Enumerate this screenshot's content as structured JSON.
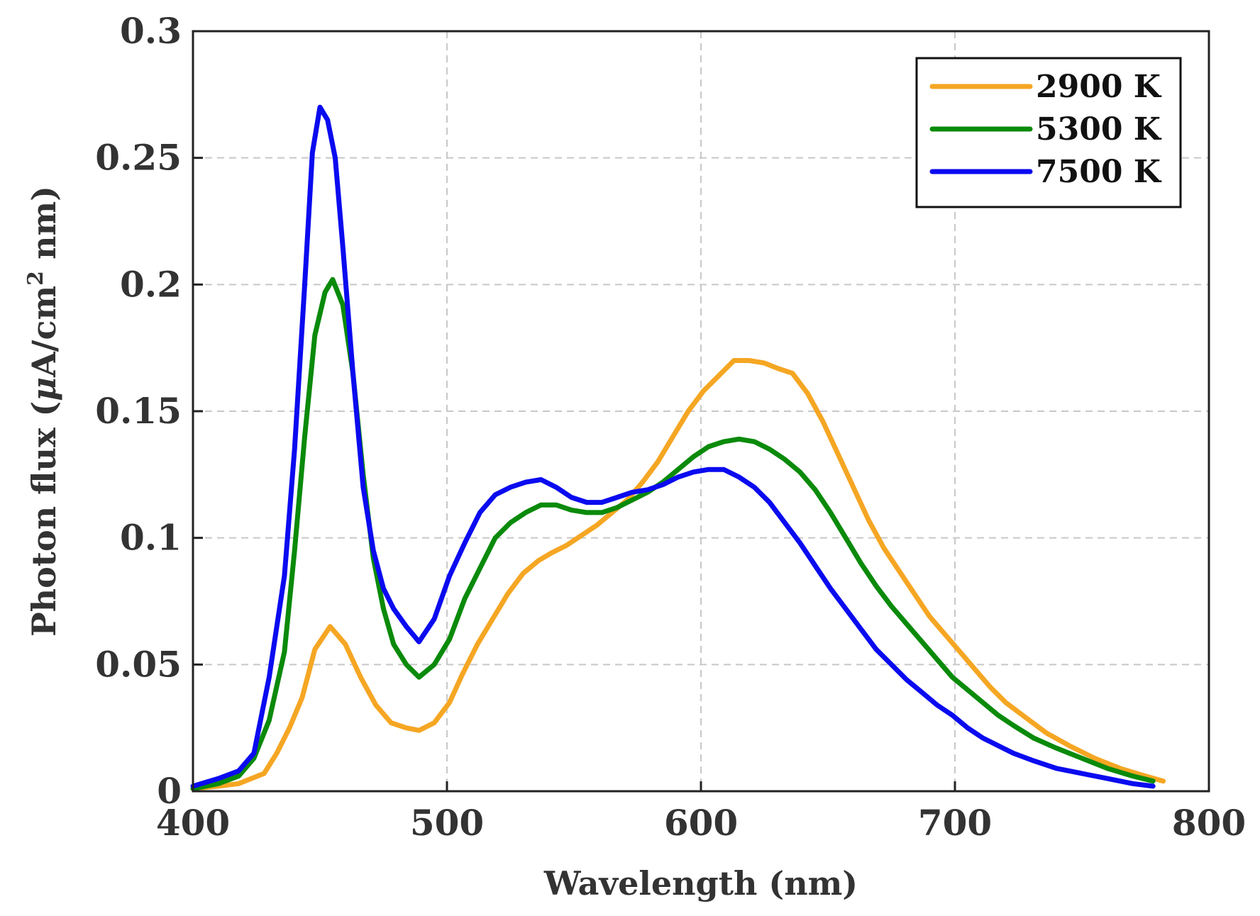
{
  "chart_data": {
    "type": "line",
    "title": "",
    "xlabel": "Wavelength (nm)",
    "ylabel_prefix": "Photon flux (",
    "ylabel_mu": "μ",
    "ylabel_unit": "A/cm",
    "ylabel_sup": "2",
    "ylabel_suffix": " nm)",
    "xlim": [
      400,
      800
    ],
    "ylim": [
      0,
      0.3
    ],
    "xticks": [
      "400",
      "500",
      "600",
      "700",
      "800"
    ],
    "yticks": [
      "0",
      "0.05",
      "0.1",
      "0.15",
      "0.2",
      "0.25",
      "0.3"
    ],
    "grid": true,
    "legend_position": "top-right",
    "series": [
      {
        "name": "2900 K",
        "color": "#F5A623",
        "x": [
          400,
          410,
          418,
          428,
          433,
          438,
          443,
          448,
          454,
          460,
          466,
          472,
          478,
          484,
          489,
          495,
          501,
          506,
          512,
          518,
          524,
          530,
          536,
          541,
          547,
          553,
          559,
          565,
          571,
          577,
          583,
          589,
          595,
          601,
          607,
          613,
          619,
          625,
          630,
          636,
          642,
          648,
          654,
          660,
          666,
          672,
          678,
          684,
          690,
          696,
          702,
          708,
          714,
          720,
          728,
          736,
          745,
          755,
          765,
          775,
          782
        ],
        "y": [
          0.001,
          0.002,
          0.003,
          0.007,
          0.015,
          0.025,
          0.037,
          0.056,
          0.065,
          0.058,
          0.045,
          0.034,
          0.027,
          0.025,
          0.024,
          0.027,
          0.035,
          0.046,
          0.058,
          0.068,
          0.078,
          0.086,
          0.091,
          0.094,
          0.097,
          0.101,
          0.105,
          0.11,
          0.115,
          0.122,
          0.13,
          0.14,
          0.15,
          0.158,
          0.164,
          0.17,
          0.17,
          0.169,
          0.167,
          0.165,
          0.157,
          0.146,
          0.133,
          0.12,
          0.107,
          0.096,
          0.087,
          0.078,
          0.069,
          0.062,
          0.055,
          0.048,
          0.041,
          0.035,
          0.029,
          0.023,
          0.018,
          0.013,
          0.009,
          0.006,
          0.004
        ]
      },
      {
        "name": "5300 K",
        "color": "#0A8A0A",
        "x": [
          400,
          410,
          418,
          424,
          430,
          436,
          440,
          444,
          448,
          452,
          455,
          459,
          463,
          467,
          471,
          475,
          479,
          484,
          489,
          495,
          501,
          507,
          513,
          519,
          525,
          531,
          537,
          543,
          549,
          555,
          561,
          567,
          573,
          579,
          585,
          591,
          597,
          603,
          609,
          615,
          621,
          627,
          633,
          639,
          645,
          651,
          657,
          663,
          669,
          675,
          681,
          687,
          693,
          699,
          705,
          711,
          717,
          723,
          731,
          740,
          750,
          760,
          770,
          778
        ],
        "y": [
          0.001,
          0.003,
          0.006,
          0.013,
          0.028,
          0.055,
          0.095,
          0.14,
          0.18,
          0.197,
          0.202,
          0.192,
          0.165,
          0.125,
          0.092,
          0.072,
          0.058,
          0.05,
          0.045,
          0.05,
          0.06,
          0.076,
          0.088,
          0.1,
          0.106,
          0.11,
          0.113,
          0.113,
          0.111,
          0.11,
          0.11,
          0.112,
          0.115,
          0.118,
          0.122,
          0.127,
          0.132,
          0.136,
          0.138,
          0.139,
          0.138,
          0.135,
          0.131,
          0.126,
          0.119,
          0.11,
          0.1,
          0.09,
          0.081,
          0.073,
          0.066,
          0.059,
          0.052,
          0.045,
          0.04,
          0.035,
          0.03,
          0.026,
          0.021,
          0.017,
          0.013,
          0.009,
          0.006,
          0.004
        ]
      },
      {
        "name": "7500 K",
        "color": "#0A0AF0",
        "x": [
          400,
          410,
          418,
          424,
          430,
          436,
          440,
          444,
          447,
          450,
          453,
          456,
          459,
          463,
          467,
          471,
          475,
          479,
          484,
          489,
          495,
          501,
          507,
          513,
          519,
          525,
          531,
          537,
          543,
          549,
          555,
          561,
          567,
          573,
          579,
          585,
          591,
          597,
          603,
          609,
          615,
          621,
          627,
          633,
          639,
          645,
          651,
          657,
          663,
          669,
          675,
          681,
          687,
          693,
          699,
          705,
          711,
          717,
          723,
          731,
          740,
          750,
          760,
          770,
          778
        ],
        "y": [
          0.002,
          0.005,
          0.008,
          0.015,
          0.045,
          0.085,
          0.135,
          0.2,
          0.252,
          0.27,
          0.265,
          0.25,
          0.215,
          0.165,
          0.12,
          0.095,
          0.08,
          0.072,
          0.065,
          0.059,
          0.068,
          0.085,
          0.098,
          0.11,
          0.117,
          0.12,
          0.122,
          0.123,
          0.12,
          0.116,
          0.114,
          0.114,
          0.116,
          0.118,
          0.119,
          0.121,
          0.124,
          0.126,
          0.127,
          0.127,
          0.124,
          0.12,
          0.114,
          0.106,
          0.098,
          0.089,
          0.08,
          0.072,
          0.064,
          0.056,
          0.05,
          0.044,
          0.039,
          0.034,
          0.03,
          0.025,
          0.021,
          0.018,
          0.015,
          0.012,
          0.009,
          0.007,
          0.005,
          0.003,
          0.002
        ]
      }
    ]
  }
}
